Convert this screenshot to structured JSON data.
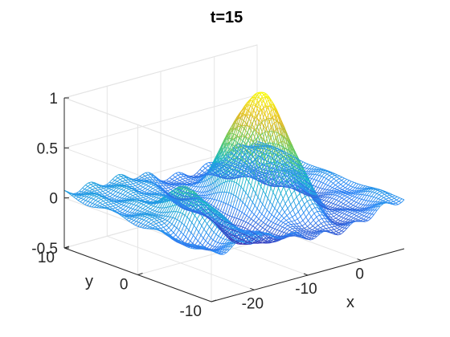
{
  "chart_data": {
    "type": "surface",
    "style": "mesh",
    "title": "t=15",
    "xlabel": "x",
    "ylabel": "y",
    "zlabel": "",
    "xlim": [
      -28,
      8
    ],
    "ylim": [
      -10,
      10
    ],
    "zlim": [
      -0.5,
      1
    ],
    "x_ticks": [
      -20,
      -10,
      0
    ],
    "y_ticks": [
      -10,
      0,
      10
    ],
    "z_ticks": [
      -0.5,
      0,
      0.5,
      1
    ],
    "x_tick_labels": [
      "-20",
      "-10",
      "0"
    ],
    "y_tick_labels": [
      "-10",
      "0",
      "10"
    ],
    "z_tick_labels": [
      "-0.5",
      "0",
      "0.5",
      "1"
    ],
    "grid": true,
    "colormap": "parula",
    "colormap_stops": [
      "#3e26a8",
      "#2e87f7",
      "#17b8c8",
      "#68cb5c",
      "#e3ba25",
      "#f9fb0e"
    ],
    "features": {
      "main_peak": {
        "x": -5,
        "y": 0,
        "z": 0.95
      },
      "surrounding_trough": -0.25,
      "ridge_along_back": 0.05,
      "hump_left": {
        "x": -21,
        "y": -2,
        "z": 0.3
      }
    }
  }
}
